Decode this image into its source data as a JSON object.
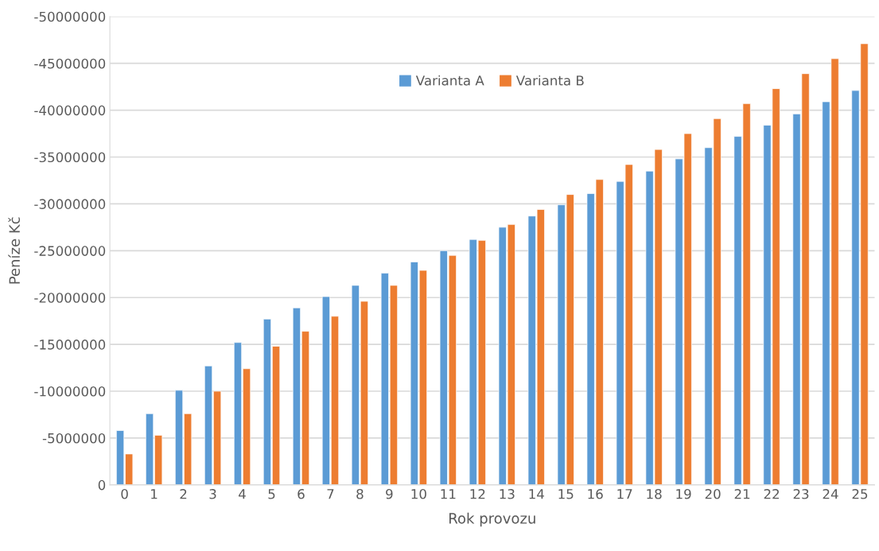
{
  "chart_data": {
    "type": "bar",
    "xlabel": "Rok provozu",
    "ylabel": "Peníze Kč",
    "categories": [
      "0",
      "1",
      "2",
      "3",
      "4",
      "5",
      "6",
      "7",
      "8",
      "9",
      "10",
      "11",
      "12",
      "13",
      "14",
      "15",
      "16",
      "17",
      "18",
      "19",
      "20",
      "21",
      "22",
      "23",
      "24",
      "25"
    ],
    "series": [
      {
        "name": "Varianta A",
        "color": "#5b9bd5",
        "values": [
          -5800000,
          -7600000,
          -10100000,
          -12700000,
          -15200000,
          -17700000,
          -18900000,
          -20100000,
          -21300000,
          -22600000,
          -23800000,
          -25000000,
          -26200000,
          -27500000,
          -28700000,
          -29900000,
          -31100000,
          -32400000,
          -33500000,
          -34800000,
          -36000000,
          -37200000,
          -38400000,
          -39600000,
          -40900000,
          -42100000
        ]
      },
      {
        "name": "Varianta B",
        "color": "#ed7d31",
        "values": [
          -3300000,
          -5300000,
          -7600000,
          -10000000,
          -12400000,
          -14800000,
          -16400000,
          -18000000,
          -19600000,
          -21300000,
          -22900000,
          -24500000,
          -26100000,
          -27800000,
          -29400000,
          -31000000,
          -32600000,
          -34200000,
          -35800000,
          -37500000,
          -39100000,
          -40700000,
          -42300000,
          -43900000,
          -45500000,
          -47100000
        ]
      }
    ],
    "ylim": [
      0,
      -50000000
    ],
    "yticks": [
      0,
      -5000000,
      -10000000,
      -15000000,
      -20000000,
      -25000000,
      -30000000,
      -35000000,
      -40000000,
      -45000000,
      -50000000
    ],
    "grid": "y",
    "legend": "top"
  }
}
